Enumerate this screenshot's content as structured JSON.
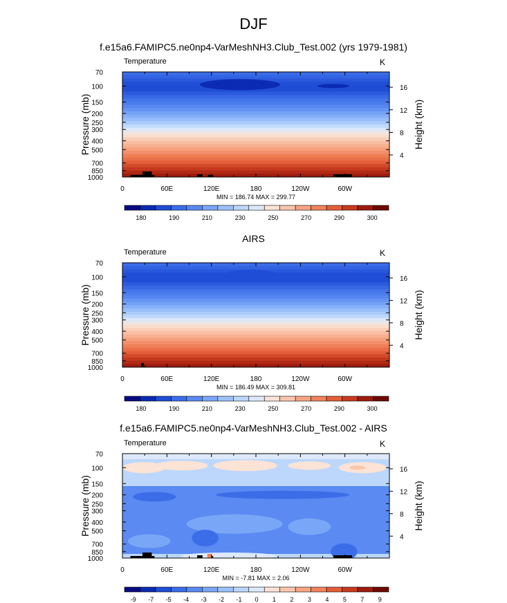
{
  "page": {
    "title": "DJF"
  },
  "chart_data": [
    {
      "type": "heatmap",
      "title": "f.e15a6.FAMIPC5.ne0np4-VarMeshNH3.Club_Test.002 (yrs 1979-1981)",
      "field_label": "Temperature",
      "units": "K",
      "ylabel": "Pressure (mb)",
      "ylabel_right": "Height (km)",
      "x_ticks": [
        "0",
        "60E",
        "120E",
        "180",
        "120W",
        "60W"
      ],
      "x_range": [
        0,
        360
      ],
      "y_ticks": [
        70,
        100,
        150,
        200,
        250,
        300,
        400,
        500,
        700,
        850,
        1000
      ],
      "y_range": [
        70,
        1000
      ],
      "y_scale": "log",
      "height_ticks": [
        4,
        8,
        12,
        16
      ],
      "stats": "MIN = 186.74  MAX = 299.77",
      "min": 186.74,
      "max": 299.77,
      "colorbar_labels": [
        "180",
        "190",
        "210",
        "230",
        "250",
        "270",
        "290",
        "300"
      ],
      "colorbar_colors": [
        "#0a0a82",
        "#0b2bb4",
        "#1f4dd6",
        "#3b6de8",
        "#5a8af2",
        "#7aa6f7",
        "#9cc1fa",
        "#bcd7fb",
        "#dde9fb",
        "#fbe3d6",
        "#f9c6ad",
        "#f7a583",
        "#f1825b",
        "#e45f39",
        "#c83b1f",
        "#9e1c0e",
        "#6e0a04"
      ]
    },
    {
      "type": "heatmap",
      "title": "AIRS",
      "field_label": "Temperature",
      "units": "K",
      "ylabel": "Pressure (mb)",
      "ylabel_right": "Height (km)",
      "x_ticks": [
        "0",
        "60E",
        "120E",
        "180",
        "120W",
        "60W"
      ],
      "x_range": [
        0,
        360
      ],
      "y_ticks": [
        70,
        100,
        150,
        200,
        250,
        300,
        400,
        500,
        700,
        850,
        1000
      ],
      "y_range": [
        70,
        1000
      ],
      "y_scale": "log",
      "height_ticks": [
        4,
        8,
        12,
        16
      ],
      "stats": "MIN = 186.49  MAX = 309.81",
      "min": 186.49,
      "max": 309.81,
      "colorbar_labels": [
        "180",
        "190",
        "210",
        "230",
        "250",
        "270",
        "290",
        "300"
      ],
      "colorbar_colors": [
        "#0a0a82",
        "#0b2bb4",
        "#1f4dd6",
        "#3b6de8",
        "#5a8af2",
        "#7aa6f7",
        "#9cc1fa",
        "#bcd7fb",
        "#dde9fb",
        "#fbe3d6",
        "#f9c6ad",
        "#f7a583",
        "#f1825b",
        "#e45f39",
        "#c83b1f",
        "#9e1c0e",
        "#6e0a04"
      ]
    },
    {
      "type": "heatmap",
      "title": "f.e15a6.FAMIPC5.ne0np4-VarMeshNH3.Club_Test.002 - AIRS",
      "field_label": "Temperature",
      "units": "K",
      "ylabel": "Pressure (mb)",
      "ylabel_right": "Height (km)",
      "x_ticks": [
        "0",
        "60E",
        "120E",
        "180",
        "120W",
        "60W"
      ],
      "x_range": [
        0,
        360
      ],
      "y_ticks": [
        70,
        100,
        150,
        200,
        250,
        300,
        400,
        500,
        700,
        850,
        1000
      ],
      "y_range": [
        70,
        1000
      ],
      "y_scale": "log",
      "height_ticks": [
        4,
        8,
        12,
        16
      ],
      "stats": "MIN = -7.81  MAX =  2.06",
      "min": -7.81,
      "max": 2.06,
      "colorbar_labels": [
        "-9",
        "-7",
        "-5",
        "-4",
        "-3",
        "-2",
        "-1",
        "0",
        "1",
        "2",
        "3",
        "4",
        "5",
        "7",
        "9"
      ],
      "colorbar_colors": [
        "#0a0a82",
        "#0b2bb4",
        "#1f4dd6",
        "#3b6de8",
        "#5a8af2",
        "#7aa6f7",
        "#9cc1fa",
        "#bcd7fb",
        "#dde9fb",
        "#fbe3d6",
        "#f9c6ad",
        "#f7a583",
        "#f1825b",
        "#e45f39",
        "#c83b1f",
        "#9e1c0e",
        "#6e0a04"
      ]
    }
  ]
}
